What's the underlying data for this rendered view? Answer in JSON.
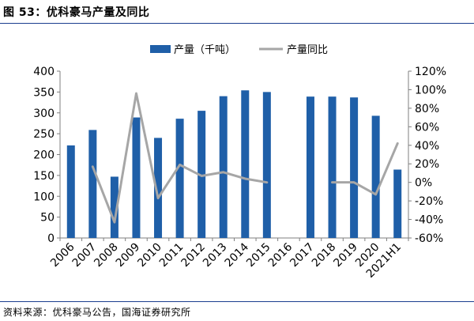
{
  "header": {
    "title": "图 53：优科豪马产量及同比"
  },
  "footer": {
    "source": "资料来源：优科豪马公告，国海证券研究所"
  },
  "colors": {
    "bar": "#1f5fa8",
    "line": "#a6a6a6",
    "axis": "#7f7f7f",
    "rule": "#1a3d8f"
  },
  "chart_data": {
    "type": "bar",
    "categories": [
      "2006",
      "2007",
      "2008",
      "2009",
      "2010",
      "2011",
      "2012",
      "2013",
      "2014",
      "2015",
      "2016",
      "2017",
      "2018",
      "2019",
      "2020",
      "2021H1"
    ],
    "series": [
      {
        "name": "产量（千吨）",
        "type": "bar",
        "axis": "left",
        "values": [
          222,
          259,
          147,
          289,
          240,
          286,
          305,
          340,
          354,
          350,
          null,
          339,
          339,
          337,
          293,
          164
        ]
      },
      {
        "name": "产量同比",
        "type": "line",
        "axis": "right",
        "values": [
          null,
          0.17,
          -0.43,
          0.96,
          -0.17,
          0.19,
          0.07,
          0.11,
          0.04,
          0.0,
          null,
          null,
          0.0,
          0.0,
          -0.13,
          0.42
        ]
      }
    ],
    "y_left": {
      "lim": [
        0,
        400
      ],
      "ticks": [
        "0",
        "50",
        "100",
        "150",
        "200",
        "250",
        "300",
        "350",
        "400"
      ]
    },
    "y_right": {
      "lim": [
        -0.6,
        1.2
      ],
      "ticks": [
        "-60%",
        "-40%",
        "-20%",
        "0%",
        "20%",
        "40%",
        "60%",
        "80%",
        "100%",
        "120%"
      ]
    },
    "legend": "top-center",
    "grid": false
  }
}
